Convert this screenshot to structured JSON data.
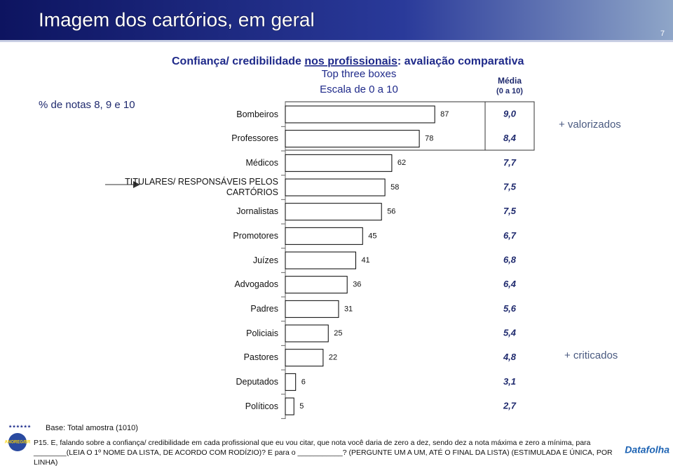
{
  "header": {
    "title": "Imagem dos cartórios, em geral",
    "page_number": "7"
  },
  "chart_data": {
    "type": "bar",
    "orientation": "horizontal",
    "title_parts": [
      "Confiança/ credibilidade ",
      "nos profissionais",
      ": avaliação comparativa"
    ],
    "subtitle": "Top three boxes",
    "scale_note": "Escala de 0 a 10",
    "value_axis_label": "% de notas 8, 9 e 10",
    "categories": [
      "Bombeiros",
      "Professores",
      "Médicos",
      "TITULARES/ RESPONSÁVEIS PELOS CARTÓRIOS",
      "Jornalistas",
      "Promotores",
      "Juízes",
      "Advogados",
      "Padres",
      "Policiais",
      "Pastores",
      "Deputados",
      "Políticos"
    ],
    "values": [
      87,
      78,
      62,
      58,
      56,
      45,
      41,
      36,
      31,
      25,
      22,
      6,
      5
    ],
    "color": "#ffffff",
    "xlim": [
      0,
      100
    ],
    "average": {
      "title": "Média",
      "subtitle": "(0 a 10)",
      "values": [
        9.0,
        8.4,
        7.7,
        7.5,
        7.5,
        6.7,
        6.8,
        6.4,
        5.6,
        5.4,
        4.8,
        3.1,
        2.7
      ],
      "value_labels": [
        "9,0",
        "8,4",
        "7,7",
        "7,5",
        "7,5",
        "6,7",
        "6,8",
        "6,4",
        "5,6",
        "5,4",
        "4,8",
        "3,1",
        "2,7"
      ]
    },
    "annotations": [
      "+ valorizados",
      "+ criticados"
    ]
  },
  "footer": {
    "base": "Base: Total amostra (1010)",
    "question": "P15. E, falando sobre a confiança/ credibilidade em cada profissional que eu vou citar, que nota você daria de zero a dez, sendo dez a nota máxima e zero a mínima, para ________(LEIA O 1º NOME DA LISTA, DE ACORDO COM RODÍZIO)? E para o ___________? (PERGUNTE UM A UM, ATÉ O FINAL DA LISTA) (ESTIMULADA E ÚNICA, POR LINHA)",
    "logos": [
      "ANOREG/BR",
      "Datafolha"
    ]
  }
}
